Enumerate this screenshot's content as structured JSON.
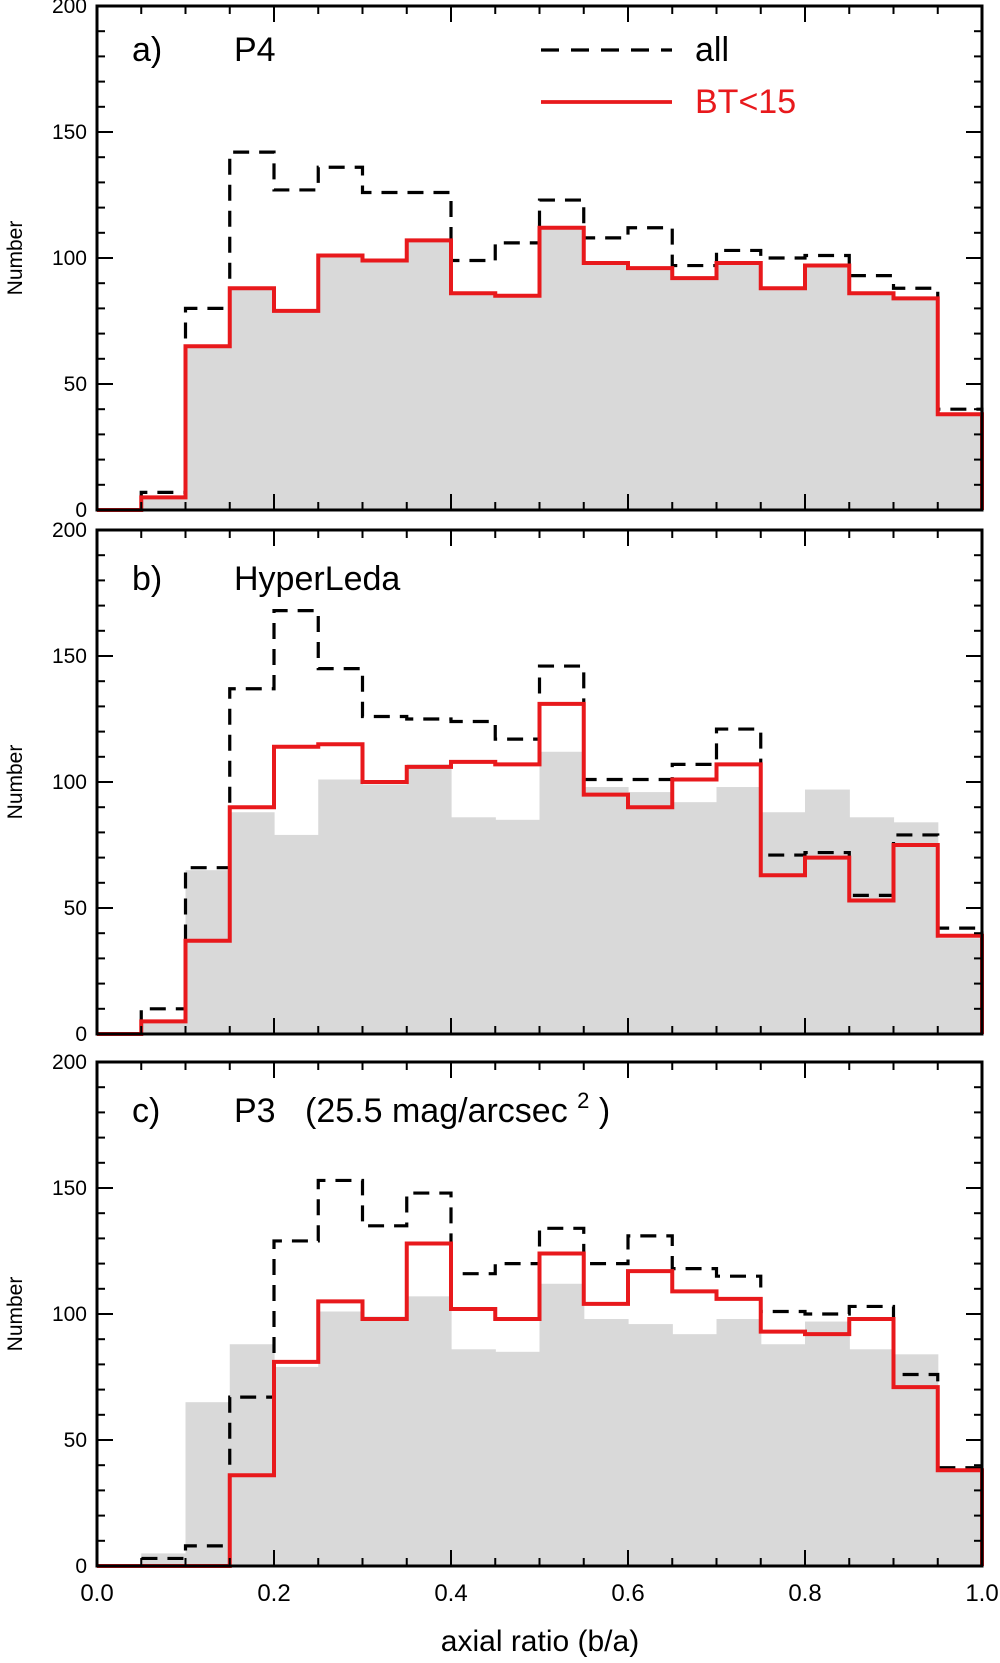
{
  "chart_data": [
    {
      "type": "step-histogram",
      "panel_label": "a)",
      "title": "P4",
      "title_sup": "",
      "title_suffix": "",
      "ylabel": "Number",
      "xlabel": "",
      "xlim": [
        0.0,
        1.0
      ],
      "ylim": [
        0,
        200
      ],
      "yticks": [
        "0",
        "50",
        "100",
        "150",
        "200"
      ],
      "bin_edges": [
        0.0,
        0.05,
        0.1,
        0.15,
        0.2,
        0.25,
        0.3,
        0.35,
        0.4,
        0.45,
        0.5,
        0.55,
        0.6,
        0.65,
        0.7,
        0.75,
        0.8,
        0.85,
        0.9,
        0.95,
        1.0
      ],
      "legend": [
        {
          "label": "all",
          "style": "dashed",
          "color": "#000000"
        },
        {
          "label": "BT<15",
          "style": "solid",
          "color": "#e8191c"
        }
      ],
      "series": [
        {
          "name": "reference (filled)",
          "style": "fill",
          "color": "#d9d9d9",
          "values": [
            0,
            5,
            65,
            88,
            79,
            101,
            99,
            107,
            86,
            85,
            112,
            98,
            96,
            92,
            98,
            88,
            97,
            86,
            84,
            38
          ]
        },
        {
          "name": "all",
          "style": "dashed",
          "color": "#000000",
          "values": [
            0,
            7,
            80,
            142,
            127,
            136,
            126,
            126,
            99,
            106,
            123,
            108,
            112,
            97,
            103,
            100,
            101,
            93,
            88,
            40
          ]
        },
        {
          "name": "BT<15",
          "style": "solid",
          "color": "#e8191c",
          "values": [
            0,
            5,
            65,
            88,
            79,
            101,
            99,
            107,
            86,
            85,
            112,
            98,
            96,
            92,
            98,
            88,
            97,
            86,
            84,
            38
          ]
        }
      ]
    },
    {
      "type": "step-histogram",
      "panel_label": "b)",
      "title": "HyperLeda",
      "title_sup": "",
      "title_suffix": "",
      "ylabel": "Number",
      "xlabel": "",
      "xlim": [
        0.0,
        1.0
      ],
      "ylim": [
        0,
        200
      ],
      "yticks": [
        "0",
        "50",
        "100",
        "150",
        "200"
      ],
      "bin_edges": [
        0.0,
        0.05,
        0.1,
        0.15,
        0.2,
        0.25,
        0.3,
        0.35,
        0.4,
        0.45,
        0.5,
        0.55,
        0.6,
        0.65,
        0.7,
        0.75,
        0.8,
        0.85,
        0.9,
        0.95,
        1.0
      ],
      "legend": [],
      "series": [
        {
          "name": "reference (filled)",
          "style": "fill",
          "color": "#d9d9d9",
          "values": [
            0,
            5,
            65,
            88,
            79,
            101,
            99,
            107,
            86,
            85,
            112,
            98,
            96,
            92,
            98,
            88,
            97,
            86,
            84,
            38
          ]
        },
        {
          "name": "all",
          "style": "dashed",
          "color": "#000000",
          "values": [
            0,
            10,
            66,
            137,
            168,
            145,
            126,
            125,
            124,
            117,
            146,
            101,
            101,
            107,
            121,
            71,
            72,
            55,
            79,
            42
          ]
        },
        {
          "name": "BT<15",
          "style": "solid",
          "color": "#e8191c",
          "values": [
            0,
            5,
            37,
            90,
            114,
            115,
            100,
            106,
            108,
            107,
            131,
            95,
            90,
            101,
            107,
            63,
            70,
            53,
            75,
            39
          ]
        }
      ]
    },
    {
      "type": "step-histogram",
      "panel_label": "c)",
      "title": "P3",
      "title_sup": "2",
      "title_suffix": "(25.5 mag/arcsec",
      "title_close": ")",
      "ylabel": "Number",
      "xlabel": "axial ratio (b/a)",
      "xlim": [
        0.0,
        1.0
      ],
      "ylim": [
        0,
        200
      ],
      "yticks": [
        "0",
        "50",
        "100",
        "150",
        "200"
      ],
      "xticks": [
        "0.0",
        "0.2",
        "0.4",
        "0.6",
        "0.8",
        "1.0"
      ],
      "bin_edges": [
        0.0,
        0.05,
        0.1,
        0.15,
        0.2,
        0.25,
        0.3,
        0.35,
        0.4,
        0.45,
        0.5,
        0.55,
        0.6,
        0.65,
        0.7,
        0.75,
        0.8,
        0.85,
        0.9,
        0.95,
        1.0
      ],
      "legend": [],
      "series": [
        {
          "name": "reference (filled)",
          "style": "fill",
          "color": "#d9d9d9",
          "values": [
            0,
            5,
            65,
            88,
            79,
            101,
            99,
            107,
            86,
            85,
            112,
            98,
            96,
            92,
            98,
            88,
            97,
            86,
            84,
            38
          ]
        },
        {
          "name": "all",
          "style": "dashed",
          "color": "#000000",
          "values": [
            0,
            3,
            8,
            67,
            129,
            153,
            135,
            148,
            116,
            120,
            134,
            120,
            131,
            118,
            115,
            101,
            100,
            103,
            76,
            39
          ]
        },
        {
          "name": "BT<15",
          "style": "solid",
          "color": "#e8191c",
          "values": [
            0,
            0,
            0,
            36,
            81,
            105,
            98,
            128,
            102,
            98,
            124,
            104,
            117,
            109,
            106,
            93,
            92,
            98,
            71,
            38
          ]
        }
      ]
    }
  ]
}
